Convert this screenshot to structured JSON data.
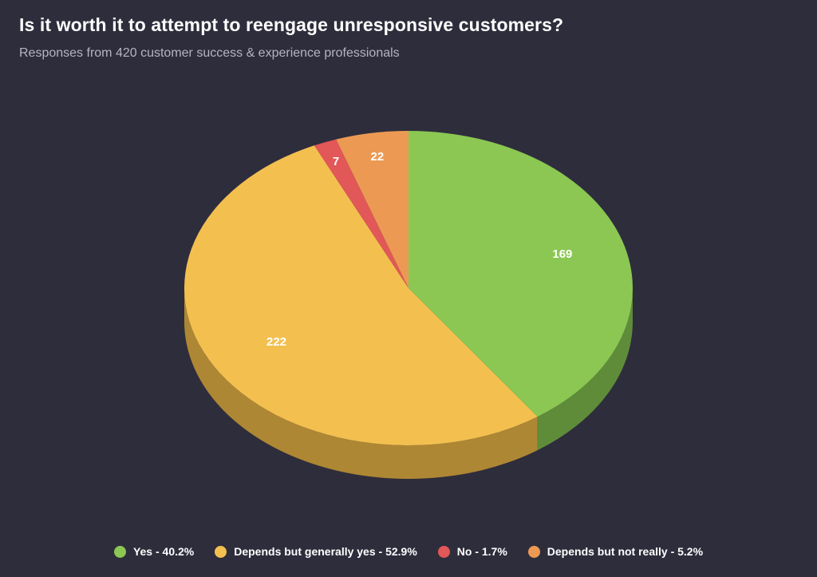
{
  "title": "Is it worth it to attempt to reengage unresponsive customers?",
  "subtitle": "Responses from 420 customer success & experience professionals",
  "chart_data": {
    "type": "pie",
    "style": "3d",
    "title": "Is it worth it to attempt to reengage unresponsive customers?",
    "subtitle": "Responses from 420 customer success & experience professionals",
    "legend_position": "bottom",
    "slices": [
      {
        "label": "Yes",
        "value": 169,
        "percent": 40.2,
        "legend": "Yes - 40.2%",
        "color": "#8bc752",
        "side_color": "#5f8c39"
      },
      {
        "label": "Depends but generally yes",
        "value": 222,
        "percent": 52.9,
        "legend": "Depends but generally yes - 52.9%",
        "color": "#f3c050",
        "side_color": "#ae8734"
      },
      {
        "label": "No",
        "value": 7,
        "percent": 1.7,
        "legend": "No - 1.7%",
        "color": "#e25757",
        "side_color": "#a23c3c"
      },
      {
        "label": "Depends but not really",
        "value": 22,
        "percent": 5.2,
        "legend": "Depends but not really - 5.2%",
        "color": "#ec9a53",
        "side_color": "#a96c39"
      }
    ]
  },
  "legend": [
    {
      "label": "Yes - 40.2%",
      "color": "#8bc752"
    },
    {
      "label": "Depends but generally yes - 52.9%",
      "color": "#f3c050"
    },
    {
      "label": "No - 1.7%",
      "color": "#e25757"
    },
    {
      "label": "Depends but not really - 5.2%",
      "color": "#ec9a53"
    }
  ]
}
